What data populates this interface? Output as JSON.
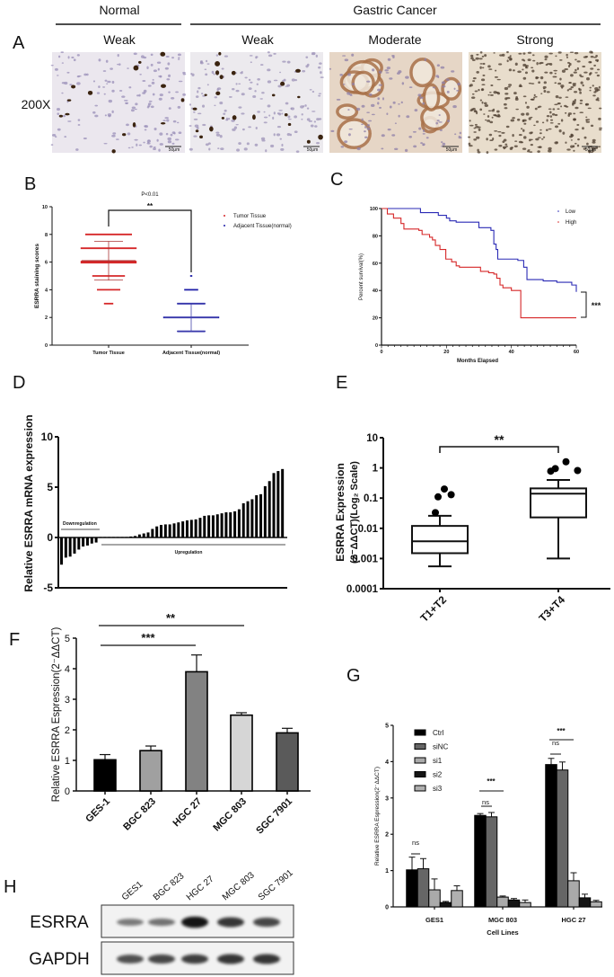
{
  "panel_labels": {
    "A": "A",
    "B": "B",
    "C": "C",
    "D": "D",
    "E": "E",
    "F": "F",
    "G": "G",
    "H": "H"
  },
  "ihc": {
    "group_normal": "Normal",
    "group_cancer": "Gastric Cancer",
    "magnification": "200X",
    "images": [
      {
        "group": "Normal",
        "intensity": "Weak",
        "scale_bar": "50μm"
      },
      {
        "group": "Gastric Cancer",
        "intensity": "Weak",
        "scale_bar": "50μm"
      },
      {
        "group": "Gastric Cancer",
        "intensity": "Moderate",
        "scale_bar": "50μm"
      },
      {
        "group": "Gastric Cancer",
        "intensity": "Strong",
        "scale_bar": "50μm"
      }
    ]
  },
  "chart_data": [
    {
      "panel": "B",
      "type": "scatter",
      "ylabel": "ESRRA staining scores",
      "categories": [
        "Tumor Tissue",
        "Adjacent Tissue(normal)"
      ],
      "ylim": [
        0,
        10
      ],
      "yticks": [
        "0",
        "2",
        "4",
        "6",
        "8",
        "10"
      ],
      "legend": "top-right",
      "series": [
        {
          "name": "Tumor Tissue",
          "color": "#d62728",
          "mean": 6.1,
          "sd": 1.4,
          "points": [
            {
              "score": 8,
              "n": 10
            },
            {
              "score": 7,
              "n": 12
            },
            {
              "score": 6,
              "n": 12
            },
            {
              "score": 5,
              "n": 7
            },
            {
              "score": 4,
              "n": 5
            },
            {
              "score": 3,
              "n": 2
            }
          ]
        },
        {
          "name": "Adjacent Tissue(normal)",
          "color": "#1f1fa8",
          "mean": 2.0,
          "sd": 1.0,
          "points": [
            {
              "score": 5,
              "n": 0.3
            },
            {
              "score": 4,
              "n": 3
            },
            {
              "score": 3,
              "n": 6
            },
            {
              "score": 2,
              "n": 12
            },
            {
              "score": 1,
              "n": 6
            }
          ]
        }
      ],
      "p_value": "P<0.01",
      "significance": "**"
    },
    {
      "panel": "C",
      "type": "line",
      "xlabel": "Months Elapsed",
      "ylabel": "Percent survival(%)",
      "xlim": [
        0,
        60
      ],
      "ylim": [
        0,
        100
      ],
      "xticks": [
        "0",
        "20",
        "40",
        "60"
      ],
      "yticks": [
        "0",
        "20",
        "40",
        "60",
        "80",
        "100"
      ],
      "legend": "top-right",
      "series": [
        {
          "name": "Low",
          "color": "#2a2ab5",
          "steps": [
            [
              0,
              100
            ],
            [
              12,
              97
            ],
            [
              17.5,
              95
            ],
            [
              20,
              93
            ],
            [
              21,
              91
            ],
            [
              23,
              90
            ],
            [
              30,
              86
            ],
            [
              33.7,
              84
            ],
            [
              34.6,
              74
            ],
            [
              35.3,
              70
            ],
            [
              35.8,
              63
            ],
            [
              42,
              62
            ],
            [
              43.8,
              57
            ],
            [
              44.8,
              48
            ],
            [
              49.8,
              47
            ],
            [
              54,
              46
            ],
            [
              58.6,
              44
            ],
            [
              60,
              39
            ]
          ]
        },
        {
          "name": "High",
          "color": "#d62728",
          "steps": [
            [
              0,
              100
            ],
            [
              1.8,
              96
            ],
            [
              3.7,
              93
            ],
            [
              6,
              89
            ],
            [
              6.9,
              85
            ],
            [
              11.5,
              84
            ],
            [
              12.5,
              81
            ],
            [
              14.8,
              79
            ],
            [
              15.7,
              77
            ],
            [
              16.6,
              73
            ],
            [
              18,
              70
            ],
            [
              19.8,
              63
            ],
            [
              21.6,
              61
            ],
            [
              23,
              58
            ],
            [
              24,
              57
            ],
            [
              30.5,
              54
            ],
            [
              33,
              53
            ],
            [
              34.6,
              52
            ],
            [
              35.5,
              49
            ],
            [
              36.5,
              44
            ],
            [
              37.4,
              42
            ],
            [
              40,
              40
            ],
            [
              42.9,
              20
            ],
            [
              60,
              20
            ]
          ]
        }
      ],
      "significance": "***"
    },
    {
      "panel": "D",
      "type": "bar",
      "ylabel": "Relative ESRRA mRNA expression",
      "ylim": [
        -5,
        10
      ],
      "yticks": [
        "-5",
        "0",
        "5",
        "10"
      ],
      "values": [
        -2.7,
        -2.0,
        -1.9,
        -1.6,
        -1.2,
        -0.9,
        -0.8,
        -0.6,
        -0.5,
        0.05,
        0.05,
        0.05,
        0.05,
        0.05,
        0.05,
        0.05,
        0.1,
        0.15,
        0.3,
        0.4,
        0.5,
        0.85,
        1.1,
        1.25,
        1.3,
        1.3,
        1.4,
        1.5,
        1.6,
        1.7,
        1.75,
        1.8,
        1.95,
        2.15,
        2.2,
        2.2,
        2.3,
        2.4,
        2.5,
        2.5,
        2.6,
        2.8,
        3.4,
        3.6,
        3.8,
        4.2,
        4.3,
        5.1,
        5.6,
        6.4,
        6.6,
        6.8
      ],
      "annotations": {
        "down": "Downregulation",
        "up": "Upregulation"
      }
    },
    {
      "panel": "E",
      "type": "box",
      "ylabel_line1": "ESRRA Expression",
      "ylabel_line2": "(2⁻ΔΔCT)(Log₂ Scale)",
      "yscale": "log",
      "ylim": [
        0.0001,
        10
      ],
      "yticks": [
        "0.0001",
        "0.001",
        "0.01",
        "0.1",
        "1",
        "10"
      ],
      "categories": [
        "T1+T2",
        "T3+T4"
      ],
      "boxes": [
        {
          "min": 0.00055,
          "q1": 0.0015,
          "median": 0.0037,
          "q3": 0.012,
          "max": 0.026,
          "outliers": [
            0.033,
            0.11,
            0.2,
            0.13
          ]
        },
        {
          "min": 0.001,
          "q1": 0.023,
          "median": 0.14,
          "q3": 0.21,
          "max": 0.4,
          "outliers": [
            0.78,
            0.95,
            1.6,
            0.82
          ]
        }
      ],
      "significance": "**"
    },
    {
      "panel": "F",
      "type": "bar",
      "ylabel": "Relative ESRRA Espression(2⁻ΔΔCT)",
      "ylim": [
        0,
        5
      ],
      "yticks": [
        "0",
        "1",
        "2",
        "3",
        "4",
        "5"
      ],
      "categories": [
        "GES-1",
        "BGC 823",
        "HGC 27",
        "MGC 803",
        "SGC 7901"
      ],
      "values": [
        1.02,
        1.32,
        3.9,
        2.48,
        1.9
      ],
      "errors": [
        0.17,
        0.15,
        0.55,
        0.08,
        0.15
      ],
      "colors": [
        "#000000",
        "#a0a0a0",
        "#828282",
        "#d6d6d6",
        "#5a5a5a"
      ],
      "comparisons": [
        {
          "from": "GES-1",
          "to": "MGC 803",
          "label": "**"
        },
        {
          "from": "GES-1",
          "to": "HGC 27",
          "label": "***"
        }
      ]
    },
    {
      "panel": "G",
      "type": "bar",
      "ylabel": "Relative ESRRA Espression(2⁻ΔΔCT)",
      "xlabel": "Cell Lines",
      "ylim": [
        0,
        5
      ],
      "yticks": [
        "0",
        "1",
        "2",
        "3",
        "4",
        "5"
      ],
      "categories": [
        "GES1",
        "MGC 803",
        "HGC 27"
      ],
      "legend": "top-left",
      "series": [
        {
          "name": "Ctrl",
          "color": "#000000",
          "values": [
            1.02,
            2.52,
            3.92
          ],
          "errors": [
            0.35,
            0.05,
            0.17
          ]
        },
        {
          "name": "siNC",
          "color": "#666666",
          "values": [
            1.05,
            2.48,
            3.77
          ],
          "errors": [
            0.28,
            0.12,
            0.22
          ]
        },
        {
          "name": "si1",
          "color": "#aaaaaa",
          "values": [
            0.47,
            0.27,
            0.72
          ],
          "errors": [
            0.3,
            0.03,
            0.22
          ]
        },
        {
          "name": "si2",
          "color": "#151515",
          "values": [
            0.12,
            0.19,
            0.25
          ],
          "errors": [
            0.03,
            0.04,
            0.1
          ]
        },
        {
          "name": "si3",
          "color": "#b0b0b0",
          "values": [
            0.45,
            0.12,
            0.14
          ],
          "errors": [
            0.13,
            0.07,
            0.04
          ]
        }
      ],
      "annotations": [
        {
          "group": "GES1",
          "ns": "ns"
        },
        {
          "group": "MGC 803",
          "ns": "ns",
          "sig": "***"
        },
        {
          "group": "HGC 27",
          "ns": "ns",
          "sig": "***"
        }
      ]
    }
  ],
  "western_blot": {
    "lanes": [
      "GES1",
      "BGC 823",
      "HGC 27",
      "MGC 803",
      "SGC 7901"
    ],
    "proteins": [
      {
        "name": "ESRRA",
        "band_intensity": [
          0.35,
          0.4,
          0.95,
          0.75,
          0.65
        ]
      },
      {
        "name": "GAPDH",
        "band_intensity": [
          0.6,
          0.65,
          0.7,
          0.75,
          0.75
        ]
      }
    ]
  }
}
